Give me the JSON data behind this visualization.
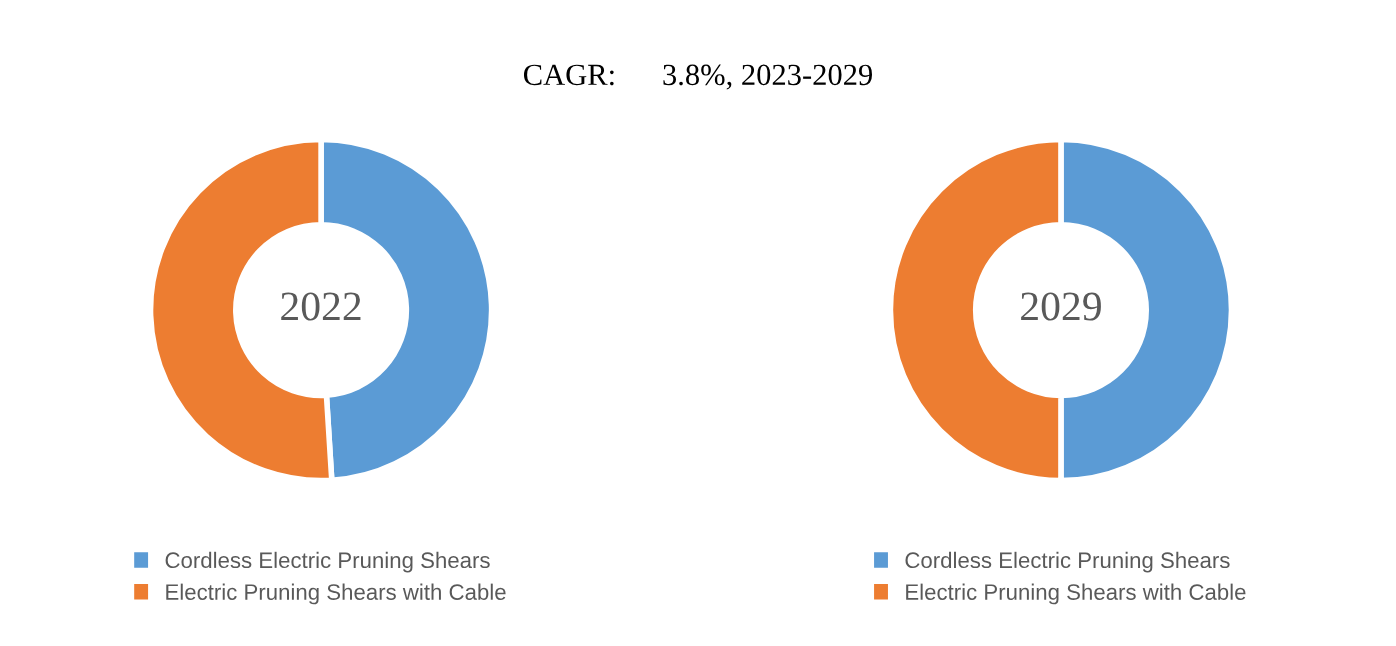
{
  "chart_data": [
    {
      "type": "donut",
      "title": "2022",
      "annotations": [
        "CAGR:      3.8%, 2023-2029"
      ],
      "categories": [
        "Cordless Electric Pruning Shears",
        "Electric Pruning Shears with Cable"
      ],
      "values": [
        49,
        51
      ],
      "colors": [
        "#5b9bd5",
        "#ed7d31"
      ],
      "legend": "bottom"
    },
    {
      "type": "donut",
      "title": "2029",
      "categories": [
        "Cordless Electric Pruning Shears",
        "Electric Pruning Shears with Cable"
      ],
      "values": [
        50,
        50
      ],
      "colors": [
        "#5b9bd5",
        "#ed7d31"
      ],
      "legend": "bottom"
    }
  ]
}
